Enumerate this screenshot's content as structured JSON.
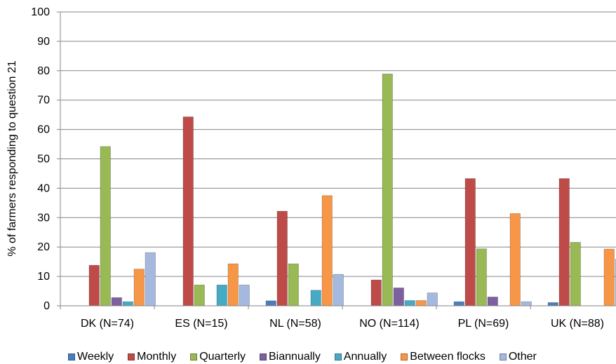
{
  "chart_data": {
    "type": "bar",
    "title": "",
    "xlabel": "",
    "ylabel": "% of farmers responding to question 21",
    "ylim": [
      0,
      100
    ],
    "yticks": [
      0,
      10,
      20,
      30,
      40,
      50,
      60,
      70,
      80,
      90,
      100
    ],
    "grid": true,
    "legend_position": "bottom",
    "categories": [
      "DK (N=74)",
      "ES (N=15)",
      "NL (N=58)",
      "NO (N=114)",
      "PL (N=69)",
      "UK (N=88)"
    ],
    "series": [
      {
        "name": "Weekly",
        "color": "#4A7EBB",
        "values": [
          0,
          0,
          1.7,
          0,
          1.4,
          1.1
        ]
      },
      {
        "name": "Monthly",
        "color": "#BE4B48",
        "values": [
          13.8,
          64.3,
          32.2,
          8.8,
          43.3,
          43.3
        ]
      },
      {
        "name": "Quarterly",
        "color": "#98B954",
        "values": [
          54.2,
          7.1,
          14.3,
          78.9,
          19.4,
          21.6
        ]
      },
      {
        "name": "Biannually",
        "color": "#7D60A0",
        "values": [
          2.8,
          0,
          0,
          6.1,
          3.0,
          0
        ]
      },
      {
        "name": "Annually",
        "color": "#46AAC5",
        "values": [
          1.4,
          7.1,
          5.3,
          1.8,
          0,
          0
        ]
      },
      {
        "name": "Between flocks",
        "color": "#F79646",
        "values": [
          12.5,
          14.3,
          37.5,
          1.8,
          31.4,
          19.3
        ]
      },
      {
        "name": "Other",
        "color": "#A5B8DE",
        "values": [
          18.1,
          7.1,
          10.7,
          4.4,
          1.4,
          15.9
        ]
      }
    ]
  }
}
